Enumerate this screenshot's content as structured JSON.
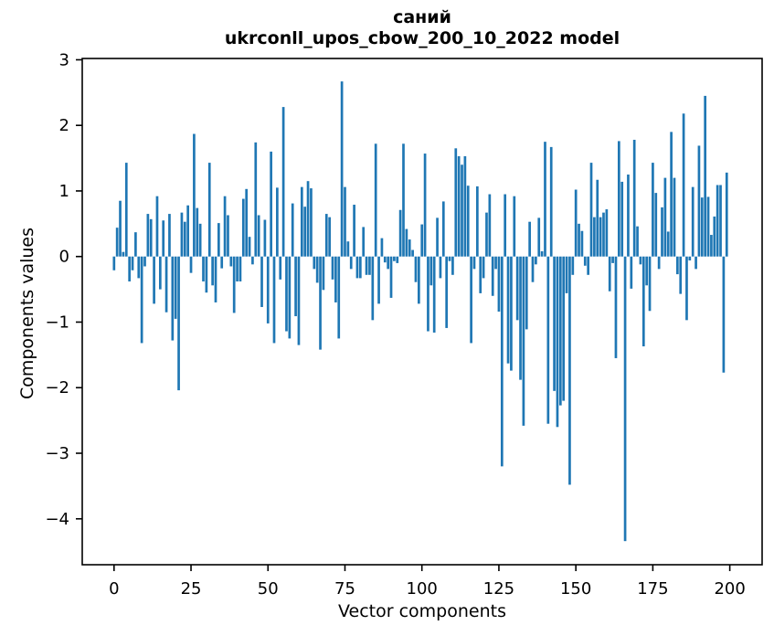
{
  "title": {
    "word": "саний",
    "model_line": "ukrconll_upos_cbow_200_10_2022 model"
  },
  "axes": {
    "xlabel": "Vector components",
    "ylabel": "Components values"
  },
  "chart_data": {
    "type": "bar",
    "title": "саний",
    "subtitle": "ukrconll_upos_cbow_200_10_2022 model",
    "xlabel": "Vector components",
    "ylabel": "Components values",
    "bar_color": "#1f77b4",
    "axis_color": "#000000",
    "background_color": "#ffffff",
    "grid": false,
    "legend_position": "none",
    "n_components": 200,
    "x_start": 0,
    "bar_width_data": 0.8,
    "xlim": [
      -10.33,
      210.5
    ],
    "ylim": [
      -4.7,
      3.02
    ],
    "xticks": [
      0,
      25,
      50,
      75,
      100,
      125,
      150,
      175,
      200
    ],
    "xtick_labels": [
      "0",
      "25",
      "50",
      "75",
      "100",
      "125",
      "150",
      "175",
      "200"
    ],
    "yticks": [
      3,
      2,
      1,
      0,
      -1,
      -2,
      -3,
      -4
    ],
    "ytick_labels": [
      "3",
      "2",
      "1",
      "0",
      "−1",
      "−2",
      "−3",
      "−4"
    ],
    "values": [
      -0.21,
      0.44,
      0.85,
      0.07,
      1.43,
      -0.38,
      -0.21,
      0.37,
      -0.33,
      -1.32,
      -0.15,
      0.65,
      0.57,
      -0.72,
      0.92,
      -0.5,
      0.55,
      -0.85,
      0.65,
      -1.28,
      -0.95,
      -2.04,
      0.67,
      0.53,
      0.78,
      -0.25,
      1.87,
      0.74,
      0.5,
      -0.38,
      -0.55,
      1.43,
      -0.44,
      -0.7,
      0.51,
      -0.18,
      0.92,
      0.63,
      -0.15,
      -0.86,
      -0.38,
      -0.38,
      0.88,
      1.03,
      0.3,
      -0.12,
      1.74,
      0.63,
      -0.77,
      0.56,
      -1.02,
      1.6,
      -1.32,
      1.05,
      -0.35,
      2.28,
      -1.14,
      -1.25,
      0.81,
      -0.91,
      -1.35,
      1.06,
      0.76,
      1.15,
      1.04,
      -0.19,
      -0.4,
      -1.42,
      -0.51,
      0.65,
      0.6,
      -0.35,
      -0.7,
      -1.25,
      2.67,
      1.06,
      0.23,
      -0.19,
      0.79,
      -0.33,
      -0.33,
      0.45,
      -0.28,
      -0.28,
      -0.97,
      1.72,
      -0.72,
      0.28,
      -0.09,
      -0.19,
      -0.63,
      -0.07,
      -0.1,
      0.71,
      1.72,
      0.42,
      0.26,
      0.1,
      -0.39,
      -0.72,
      0.49,
      1.57,
      -1.14,
      -0.44,
      -1.16,
      0.59,
      -0.33,
      0.84,
      -1.09,
      -0.07,
      -0.28,
      1.65,
      1.53,
      1.4,
      1.53,
      1.08,
      -1.32,
      -0.19,
      1.07,
      -0.56,
      -0.33,
      0.67,
      0.95,
      -0.6,
      -0.19,
      -0.84,
      -3.2,
      0.95,
      -1.63,
      -1.74,
      0.92,
      -0.97,
      -1.88,
      -2.58,
      -1.11,
      0.53,
      -0.39,
      -0.12,
      0.59,
      0.08,
      1.75,
      -2.55,
      1.67,
      -2.05,
      -2.6,
      -2.27,
      -2.2,
      -0.56,
      -3.48,
      -0.28,
      1.02,
      0.5,
      0.39,
      -0.14,
      -0.28,
      1.43,
      0.6,
      1.17,
      0.6,
      0.67,
      0.72,
      -0.53,
      -0.1,
      -1.55,
      1.76,
      1.14,
      -4.34,
      1.25,
      -0.49,
      1.78,
      0.46,
      -0.12,
      -1.37,
      -0.44,
      -0.83,
      1.43,
      0.97,
      -0.19,
      0.75,
      1.2,
      0.38,
      1.9,
      1.2,
      -0.27,
      -0.57,
      2.18,
      -0.97,
      -0.06,
      1.06,
      -0.19,
      1.69,
      0.9,
      2.45,
      0.91,
      0.33,
      0.61,
      1.09,
      1.09,
      -1.77,
      1.28
    ]
  }
}
